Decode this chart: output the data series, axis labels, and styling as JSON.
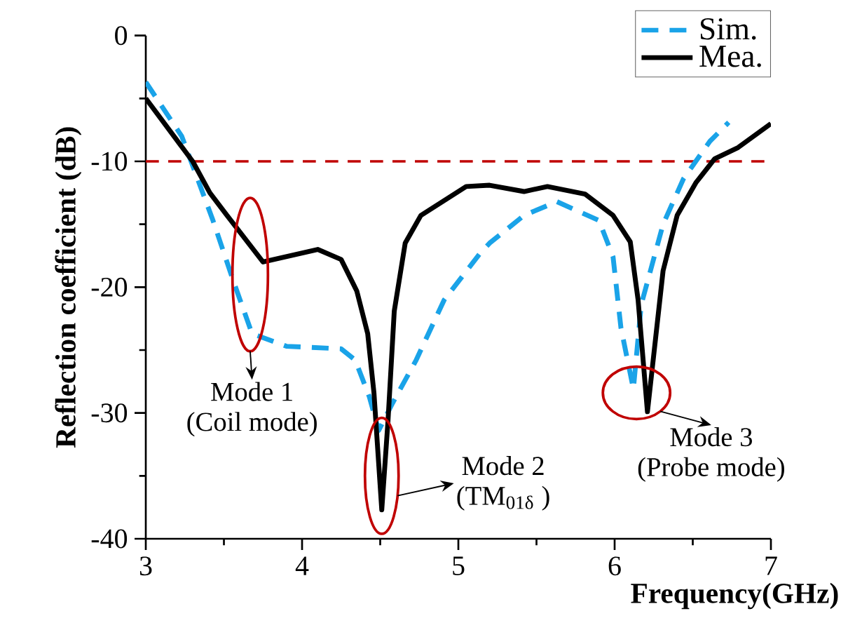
{
  "chart_data": {
    "type": "line",
    "xlabel": "Frequency(GHz)",
    "ylabel": "Reflection coefficient (dB)",
    "xlim": [
      3,
      7
    ],
    "xticks": [
      3,
      4,
      5,
      6,
      7
    ],
    "ylim": [
      -40,
      0
    ],
    "yticks": [
      -40,
      -30,
      -20,
      -10,
      0
    ],
    "legend": "top right",
    "grid": false,
    "series": [
      {
        "name": "Sim.",
        "color": "#1aa3e8",
        "line_style": "dashed",
        "x": [
          3.0,
          3.23,
          3.43,
          3.56,
          3.68,
          3.9,
          4.25,
          4.34,
          4.43,
          4.49,
          4.58,
          4.73,
          4.91,
          5.14,
          5.2,
          5.42,
          5.63,
          5.9,
          5.99,
          6.04,
          6.12,
          6.17,
          6.31,
          6.44,
          6.61,
          6.73
        ],
        "values": [
          -3.7,
          -8,
          -14.7,
          -19.5,
          -23.7,
          -24.7,
          -24.9,
          -25.8,
          -28.7,
          -31.4,
          -29.2,
          -25.8,
          -21,
          -17.3,
          -16.5,
          -14.3,
          -13.2,
          -14.7,
          -17.6,
          -23.2,
          -28.1,
          -21.4,
          -15,
          -11.4,
          -8.4,
          -6.9
        ]
      },
      {
        "name": "Mea.",
        "color": "#000000",
        "line_style": "solid",
        "x": [
          3.0,
          3.3,
          3.41,
          3.52,
          3.75,
          4.1,
          4.25,
          4.35,
          4.42,
          4.46,
          4.51,
          4.55,
          4.59,
          4.66,
          4.76,
          5.05,
          5.2,
          5.42,
          5.57,
          5.81,
          5.99,
          6.1,
          6.15,
          6.21,
          6.31,
          6.4,
          6.52,
          6.64,
          6.79,
          7.0
        ],
        "values": [
          -5,
          -10,
          -12.5,
          -14.3,
          -18,
          -17,
          -17.8,
          -20.3,
          -23.7,
          -28.4,
          -37.7,
          -30.6,
          -21.9,
          -16.5,
          -14.3,
          -12,
          -11.9,
          -12.4,
          -12,
          -12.6,
          -14.3,
          -16.4,
          -21,
          -29.9,
          -18.7,
          -14.3,
          -11.7,
          -9.8,
          -8.9,
          -7
        ]
      }
    ],
    "ref_lines": [
      {
        "axis": "y",
        "value": -10,
        "color": "#c00000",
        "line_style": "dashed"
      }
    ],
    "annotations": [
      {
        "text": "Mode 1",
        "x": 3.68,
        "y": -23.7
      },
      {
        "text": "(Coil mode)",
        "x": 3.68,
        "y": -23.7
      },
      {
        "text": "Mode 2",
        "x": 4.51,
        "y": -35
      },
      {
        "text": "(TM$_{01δ}$ )",
        "x": 4.51,
        "y": -35
      },
      {
        "text": "Mode 3",
        "x": 6.14,
        "y": -28.4
      },
      {
        "text": "(Probe mode)",
        "x": 6.14,
        "y": -28.4
      }
    ]
  }
}
